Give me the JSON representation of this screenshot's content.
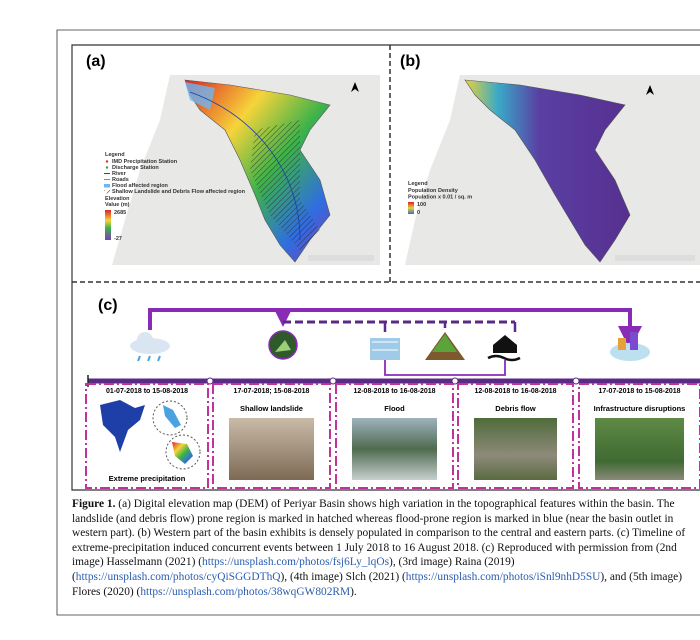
{
  "panels": {
    "a": {
      "label": "(a)",
      "legend": {
        "title": "Legend",
        "items": [
          "IMD Precipitation Station",
          "Discharge Station",
          "River",
          "Roads",
          "Flood affected region",
          "Shallow Landslide and Debris Flow affected region"
        ],
        "elevation_title": "Elevation",
        "elevation_unit": "Value (m)",
        "max": 2685,
        "min": -27
      }
    },
    "b": {
      "label": "(b)",
      "legend": {
        "title": "Legend",
        "items": [
          "Population Density",
          "Population x 0.01 / sq. m"
        ],
        "max": 100,
        "min": 0
      }
    },
    "c": {
      "label": "(c)",
      "events": [
        {
          "date": "01-07-2018 to 15-08-2018",
          "title": "Extreme precipitation"
        },
        {
          "date": "17-07-2018; 15-08-2018",
          "title": "Shallow landslide"
        },
        {
          "date": "12-08-2018 to 16-08-2018",
          "title": "Flood"
        },
        {
          "date": "12-08-2018 to 16-08-2018",
          "title": "Debris flow"
        },
        {
          "date": "17-07-2018 to 15-08-2018",
          "title": "Infrastructure disruptions"
        }
      ]
    }
  },
  "caption": {
    "label": "Figure 1.",
    "segments": [
      {
        "text": " (a) Digital elevation map (DEM) of Periyar Basin shows high variation in the topographical features within the basin. The landslide (and debris flow) prone region is marked in hatched whereas flood-prone region is marked in blue (near the basin outlet in western part). (b) Western part of the basin exhibits is densely populated in comparison to the central and eastern parts. (c) Timeline of extreme-precipitation induced concurrent events between 1 July 2018 to 16 August 2018. (c) Reproduced with permission from (2nd image) Hasselmann (2021) ("
      },
      {
        "link": "https://unsplash.com/photos/fsj6Ly_lqOs"
      },
      {
        "text": "), (3rd image) Raina (2019) ("
      },
      {
        "link": "https://unsplash.com/photos/cyQiSGGDThQ"
      },
      {
        "text": "), (4th image) Slch (2021) ("
      },
      {
        "link": "https://unsplash.com/photos/iSnl9nhD5SU"
      },
      {
        "text": "), and (5th image) Flores (2020) ("
      },
      {
        "link": "https://unsplash.com/photos/38wqGW802RM"
      },
      {
        "text": ")."
      }
    ]
  }
}
